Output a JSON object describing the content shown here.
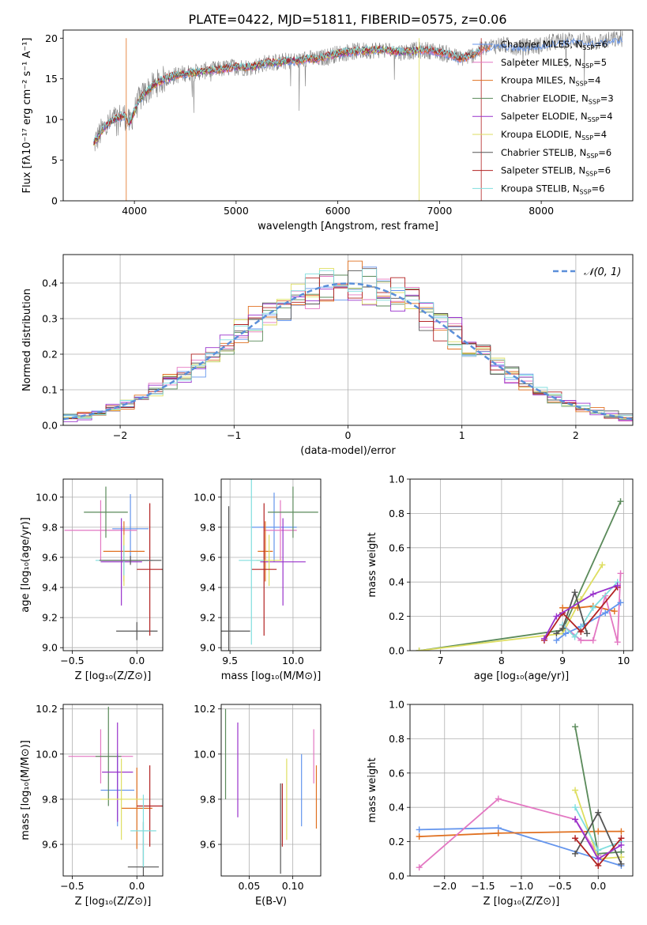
{
  "figure": {
    "title": "PLATE=0422, MJD=51811, FIBERID=0575, z=0.06"
  },
  "colors": [
    "#6495ed",
    "#e377c2",
    "#e07020",
    "#5a8a5a",
    "#9932cc",
    "#dede60",
    "#555555",
    "#b22222",
    "#80dede"
  ],
  "chart_data": [
    {
      "id": "spectrum",
      "type": "line",
      "xlabel": "wavelength [Angstrom, rest frame]",
      "ylabel": "Flux [fλ10⁻¹⁷ erg cm⁻² s⁻¹ A⁻¹]",
      "xlim": [
        3300,
        8900
      ],
      "ylim": [
        0,
        21
      ],
      "xticks": [
        4000,
        5000,
        6000,
        7000,
        8000
      ],
      "yticks": [
        0,
        5,
        10,
        15,
        20
      ],
      "grid": false,
      "legend_position": "right",
      "observed_color": "#808080",
      "x": [
        3600,
        3650,
        3700,
        3750,
        3800,
        3850,
        3900,
        3950,
        4000,
        4050,
        4100,
        4150,
        4200,
        4300,
        4400,
        4500,
        4600,
        4700,
        4800,
        4900,
        5000,
        5100,
        5200,
        5300,
        5400,
        5500,
        5600,
        5700,
        5800,
        5900,
        6000,
        6100,
        6200,
        6300,
        6400,
        6500,
        6600,
        6700,
        6800,
        6900,
        7000,
        7100,
        7200,
        7300,
        7400,
        7500,
        7600,
        7700,
        7800,
        7900,
        8000,
        8100,
        8200,
        8300,
        8400,
        8500,
        8600,
        8700,
        8800
      ],
      "y": [
        7,
        8,
        9,
        9.5,
        10,
        10.3,
        10.5,
        9.5,
        11,
        12.5,
        13.2,
        13.8,
        14.3,
        15,
        15.4,
        15.7,
        15.8,
        16,
        16.1,
        16.3,
        16.5,
        16.4,
        16.6,
        17,
        17,
        17.2,
        17.2,
        17.5,
        17.4,
        17.8,
        18.1,
        18.3,
        18.4,
        18.5,
        18.6,
        18.5,
        18.3,
        18.4,
        18.5,
        18.5,
        18.3,
        18,
        17.5,
        17.8,
        18.5,
        19,
        19.2,
        19,
        18.9,
        19,
        19.1,
        19.5,
        19.6,
        19.8,
        19.6,
        19.5,
        19.6,
        19.8,
        20
      ],
      "series": [
        {
          "name": "Chabrier MILES, N$_{SSP}$=6",
          "label": "Chabrier MILES, N",
          "suffix": "=6",
          "end": 8800
        },
        {
          "name": "Salpeter MILES, N$_{SSP}$=5",
          "label": "Salpeter MILES, N",
          "suffix": "=5",
          "end": 7500
        },
        {
          "name": "Kroupa MILES, N$_{SSP}$=4",
          "label": "Kroupa MILES, N",
          "suffix": "=4",
          "end": 7500
        },
        {
          "name": "Chabrier ELODIE, N$_{SSP}$=3",
          "label": "Chabrier ELODIE, N",
          "suffix": "=3",
          "end": 6800
        },
        {
          "name": "Salpeter ELODIE, N$_{SSP}$=4",
          "label": "Salpeter ELODIE, N",
          "suffix": "=4",
          "end": 6800
        },
        {
          "name": "Kroupa ELODIE, N$_{SSP}$=4",
          "label": "Kroupa ELODIE, N",
          "suffix": "=4",
          "end": 6800
        },
        {
          "name": "Chabrier STELIB, N$_{SSP}$=6",
          "label": "Chabrier STELIB, N",
          "suffix": "=6",
          "end": 7400
        },
        {
          "name": "Salpeter STELIB, N$_{SSP}$=6",
          "label": "Salpeter STELIB, N",
          "suffix": "=6",
          "end": 7400
        },
        {
          "name": "Kroupa STELIB, N$_{SSP}$=6",
          "label": "Kroupa STELIB, N",
          "suffix": "=6",
          "end": 7400
        }
      ],
      "legend_subscript": "SSP"
    },
    {
      "id": "residuals",
      "type": "histogram",
      "xlabel": "(data-model)/error",
      "ylabel": "Normed distribution",
      "xlim": [
        -2.5,
        2.5
      ],
      "ylim": [
        0,
        0.48
      ],
      "xticks": [
        -2,
        -1,
        0,
        1,
        2
      ],
      "yticks": [
        0.0,
        0.1,
        0.2,
        0.3,
        0.4
      ],
      "xtick_labels": [
        "−2",
        "−1",
        "0",
        "1",
        "2"
      ],
      "ytick_labels": [
        "0.0",
        "0.1",
        "0.2",
        "0.3",
        "0.4"
      ],
      "grid": true,
      "bin_range": [
        -2.5,
        2.5
      ],
      "bin_count": 40,
      "reference": {
        "name": "𝒩(0, 1)",
        "color": "#5b8fd9",
        "style": "dashed"
      },
      "legend_position": "top-right"
    },
    {
      "id": "age-vs-Z",
      "type": "errorbar",
      "xlabel": "Z [log₁₀(Z/Z⊙)]",
      "ylabel": "age  [log₁₀(age/yr)]",
      "xlim": [
        -0.57,
        0.2
      ],
      "ylim": [
        8.98,
        10.12
      ],
      "xticks": [
        -0.5,
        0.0
      ],
      "xtick_labels": [
        "−0.5",
        "0.0"
      ],
      "yticks": [
        9.0,
        9.2,
        9.4,
        9.6,
        9.8,
        10.0
      ],
      "ytick_labels": [
        "9.0",
        "9.2",
        "9.4",
        "9.6",
        "9.8",
        "10.0"
      ],
      "grid": true,
      "points": [
        {
          "x": -0.05,
          "y": 9.79,
          "xerr": 0.14,
          "yerr": 0.23,
          "c": 0
        },
        {
          "x": -0.28,
          "y": 9.78,
          "xerr": 0.28,
          "yerr": 0.2,
          "c": 1
        },
        {
          "x": -0.1,
          "y": 9.64,
          "xerr": 0.16,
          "yerr": 0.2,
          "c": 2
        },
        {
          "x": -0.24,
          "y": 9.9,
          "xerr": 0.17,
          "yerr": 0.17,
          "c": 3
        },
        {
          "x": -0.12,
          "y": 9.57,
          "xerr": 0.16,
          "yerr": 0.29,
          "c": 4
        },
        {
          "x": -0.1,
          "y": 9.58,
          "xerr": 0.16,
          "yerr": 0.17,
          "c": 5
        },
        {
          "x": 0.0,
          "y": 9.11,
          "xerr": 0.16,
          "yerr": 0.06,
          "c": 6
        },
        {
          "x": 0.1,
          "y": 9.52,
          "xerr": 0.1,
          "yerr": 0.44,
          "c": 7
        },
        {
          "x": -0.1,
          "y": 9.58,
          "xerr": 0.22,
          "yerr": 0.1,
          "c": 8
        },
        {
          "x": -0.05,
          "y": 9.58,
          "xerr": 0.24,
          "yerr": 0.03,
          "c": 6
        }
      ]
    },
    {
      "id": "age-vs-mass",
      "type": "errorbar",
      "xlabel": "mass [log₁₀(M/M⊙)]",
      "ylabel": "",
      "xlim": [
        9.43,
        10.22
      ],
      "ylim": [
        8.98,
        10.12
      ],
      "xticks": [
        9.5,
        10.0
      ],
      "xtick_labels": [
        "9.5",
        "10.0"
      ],
      "yticks": [
        9.0,
        9.2,
        9.4,
        9.6,
        9.8,
        10.0
      ],
      "ytick_labels": [
        "9.0",
        "9.2",
        "9.4",
        "9.6",
        "9.8",
        "10.0"
      ],
      "grid": true,
      "points": [
        {
          "x": 9.85,
          "y": 9.8,
          "xerr": 0.18,
          "yerr": 0.23,
          "c": 0
        },
        {
          "x": 9.9,
          "y": 9.78,
          "xerr": 0.13,
          "yerr": 0.2,
          "c": 1
        },
        {
          "x": 9.78,
          "y": 9.64,
          "xerr": 0.06,
          "yerr": 0.2,
          "c": 2
        },
        {
          "x": 10.0,
          "y": 9.9,
          "xerr": 0.2,
          "yerr": 0.17,
          "c": 3
        },
        {
          "x": 9.92,
          "y": 9.57,
          "xerr": 0.18,
          "yerr": 0.29,
          "c": 4
        },
        {
          "x": 9.81,
          "y": 9.58,
          "xerr": 0.1,
          "yerr": 0.17,
          "c": 5
        },
        {
          "x": 9.49,
          "y": 9.11,
          "xerr": 0.17,
          "yerr": 0.83,
          "c": 6
        },
        {
          "x": 9.77,
          "y": 9.52,
          "xerr": 0.1,
          "yerr": 0.44,
          "c": 7
        },
        {
          "x": 9.67,
          "y": 9.58,
          "xerr": 0.1,
          "yerr": 0.56,
          "c": 8
        }
      ]
    },
    {
      "id": "weight-vs-age",
      "type": "line",
      "xlabel": "age  [log₁₀(age/yr)]",
      "ylabel": "mass weight",
      "xlim": [
        6.5,
        10.15
      ],
      "ylim": [
        0,
        1.0
      ],
      "xticks": [
        7,
        8,
        9,
        10
      ],
      "xtick_labels": [
        "7",
        "8",
        "9",
        "10"
      ],
      "yticks": [
        0.0,
        0.2,
        0.4,
        0.6,
        0.8,
        1.0
      ],
      "ytick_labels": [
        "0.0",
        "0.2",
        "0.4",
        "0.6",
        "0.8",
        "1.0"
      ],
      "grid": true,
      "lines": [
        {
          "c": 3,
          "x": [
            6.65,
            9.0,
            9.95
          ],
          "y": [
            0.0,
            0.12,
            0.87
          ]
        },
        {
          "c": 5,
          "x": [
            6.65,
            9.0,
            9.3,
            9.65
          ],
          "y": [
            0.0,
            0.1,
            0.3,
            0.5
          ]
        },
        {
          "c": 2,
          "x": [
            9.0,
            9.25,
            9.5,
            9.85
          ],
          "y": [
            0.25,
            0.25,
            0.26,
            0.23
          ]
        },
        {
          "c": 1,
          "x": [
            9.0,
            9.3,
            9.5,
            9.7,
            9.9,
            9.95
          ],
          "y": [
            0.15,
            0.06,
            0.06,
            0.32,
            0.05,
            0.45
          ]
        },
        {
          "c": 0,
          "x": [
            8.9,
            9.05,
            9.3,
            9.7,
            9.95
          ],
          "y": [
            0.06,
            0.1,
            0.14,
            0.22,
            0.28
          ]
        },
        {
          "c": 8,
          "x": [
            9.0,
            9.2,
            9.5,
            9.9
          ],
          "y": [
            0.15,
            0.08,
            0.25,
            0.4
          ]
        },
        {
          "c": 6,
          "x": [
            8.9,
            9.0,
            9.2,
            9.4
          ],
          "y": [
            0.1,
            0.13,
            0.34,
            0.1
          ]
        },
        {
          "c": 7,
          "x": [
            8.7,
            9.0,
            9.3,
            9.9
          ],
          "y": [
            0.06,
            0.22,
            0.11,
            0.37
          ]
        },
        {
          "c": 4,
          "x": [
            8.7,
            8.9,
            9.5,
            9.9
          ],
          "y": [
            0.07,
            0.2,
            0.33,
            0.38
          ]
        }
      ]
    },
    {
      "id": "mass-vs-Z",
      "type": "errorbar",
      "xlabel": "Z [log₁₀(Z/Z⊙)]",
      "ylabel": "mass [log₁₀(M/M⊙)]",
      "xlim": [
        -0.57,
        0.2
      ],
      "ylim": [
        9.46,
        10.22
      ],
      "xticks": [
        -0.5,
        0.0
      ],
      "xtick_labels": [
        "−0.5",
        "0.0"
      ],
      "yticks": [
        9.6,
        9.8,
        10.0,
        10.2
      ],
      "ytick_labels": [
        "9.6",
        "9.8",
        "10.0",
        "10.2"
      ],
      "grid": true,
      "points": [
        {
          "x": -0.15,
          "y": 9.84,
          "xerr": 0.13,
          "yerr": 0.16,
          "c": 0
        },
        {
          "x": -0.28,
          "y": 9.99,
          "xerr": 0.25,
          "yerr": 0.12,
          "c": 1
        },
        {
          "x": 0.0,
          "y": 9.76,
          "xerr": 0.12,
          "yerr": 0.18,
          "c": 2
        },
        {
          "x": -0.22,
          "y": 9.99,
          "xerr": 0.1,
          "yerr": 0.22,
          "c": 3
        },
        {
          "x": -0.15,
          "y": 9.92,
          "xerr": 0.12,
          "yerr": 0.22,
          "c": 4
        },
        {
          "x": -0.12,
          "y": 9.8,
          "xerr": 0.16,
          "yerr": 0.18,
          "c": 5
        },
        {
          "x": 0.05,
          "y": 9.5,
          "xerr": 0.12,
          "yerr": 0.2,
          "c": 6
        },
        {
          "x": 0.1,
          "y": 9.77,
          "xerr": 0.1,
          "yerr": 0.18,
          "c": 7
        },
        {
          "x": 0.05,
          "y": 9.66,
          "xerr": 0.1,
          "yerr": 0.16,
          "c": 8
        }
      ]
    },
    {
      "id": "mass-vs-ebv",
      "type": "errorbar",
      "xlabel": "E(B-V)",
      "ylabel": "",
      "xlim": [
        0.018,
        0.132
      ],
      "ylim": [
        9.46,
        10.22
      ],
      "xticks": [
        0.05,
        0.1
      ],
      "xtick_labels": [
        "0.05",
        "0.10"
      ],
      "yticks": [
        9.6,
        9.8,
        10.0,
        10.2
      ],
      "ytick_labels": [
        "9.6",
        "9.8",
        "10.0",
        "10.2"
      ],
      "grid": true,
      "points": [
        {
          "x": 0.023,
          "y": 10.0,
          "yerr": 0.2,
          "c": 3
        },
        {
          "x": 0.037,
          "y": 9.93,
          "yerr": 0.21,
          "c": 4
        },
        {
          "x": 0.086,
          "y": 9.67,
          "yerr": 0.2,
          "c": 6
        },
        {
          "x": 0.088,
          "y": 9.73,
          "yerr": 0.14,
          "c": 7
        },
        {
          "x": 0.093,
          "y": 9.8,
          "yerr": 0.18,
          "c": 5
        },
        {
          "x": 0.11,
          "y": 9.84,
          "yerr": 0.16,
          "c": 0
        },
        {
          "x": 0.124,
          "y": 9.99,
          "yerr": 0.12,
          "c": 1
        },
        {
          "x": 0.127,
          "y": 9.81,
          "yerr": 0.14,
          "c": 2
        }
      ]
    },
    {
      "id": "weight-vs-Z",
      "type": "line",
      "xlabel": "Z [log₁₀(Z/Z⊙)]",
      "ylabel": "mass weight",
      "xlim": [
        -2.45,
        0.45
      ],
      "ylim": [
        0,
        1.0
      ],
      "xticks": [
        -2.0,
        -1.5,
        -1.0,
        -0.5,
        0.0
      ],
      "xtick_labels": [
        "−2.0",
        "−1.5",
        "−1.0",
        "−0.5",
        "0.0"
      ],
      "yticks": [
        0.0,
        0.2,
        0.4,
        0.6,
        0.8,
        1.0
      ],
      "ytick_labels": [
        "0.0",
        "0.2",
        "0.4",
        "0.6",
        "0.8",
        "1.0"
      ],
      "grid": true,
      "lines": [
        {
          "c": 0,
          "x": [
            -2.33,
            -1.3,
            0.0,
            0.3
          ],
          "y": [
            0.27,
            0.28,
            0.1,
            0.06
          ]
        },
        {
          "c": 2,
          "x": [
            -2.33,
            -1.3,
            0.0,
            0.3
          ],
          "y": [
            0.23,
            0.25,
            0.26,
            0.26
          ]
        },
        {
          "c": 1,
          "x": [
            -2.33,
            -1.3,
            -0.3,
            0.0
          ],
          "y": [
            0.05,
            0.45,
            0.33,
            0.12
          ]
        },
        {
          "c": 3,
          "x": [
            -0.3,
            0.0,
            0.3
          ],
          "y": [
            0.87,
            0.13,
            0.14
          ]
        },
        {
          "c": 5,
          "x": [
            -0.3,
            0.0,
            0.3
          ],
          "y": [
            0.5,
            0.1,
            0.11
          ]
        },
        {
          "c": 8,
          "x": [
            -0.3,
            0.0,
            0.3
          ],
          "y": [
            0.4,
            0.15,
            0.2
          ]
        },
        {
          "c": 6,
          "x": [
            -0.3,
            0.0,
            0.3
          ],
          "y": [
            0.13,
            0.37,
            0.07
          ]
        },
        {
          "c": 7,
          "x": [
            -0.3,
            0.0,
            0.3
          ],
          "y": [
            0.22,
            0.06,
            0.22
          ]
        },
        {
          "c": 4,
          "x": [
            -0.3,
            0.0,
            0.3
          ],
          "y": [
            0.33,
            0.1,
            0.18
          ]
        }
      ]
    }
  ]
}
